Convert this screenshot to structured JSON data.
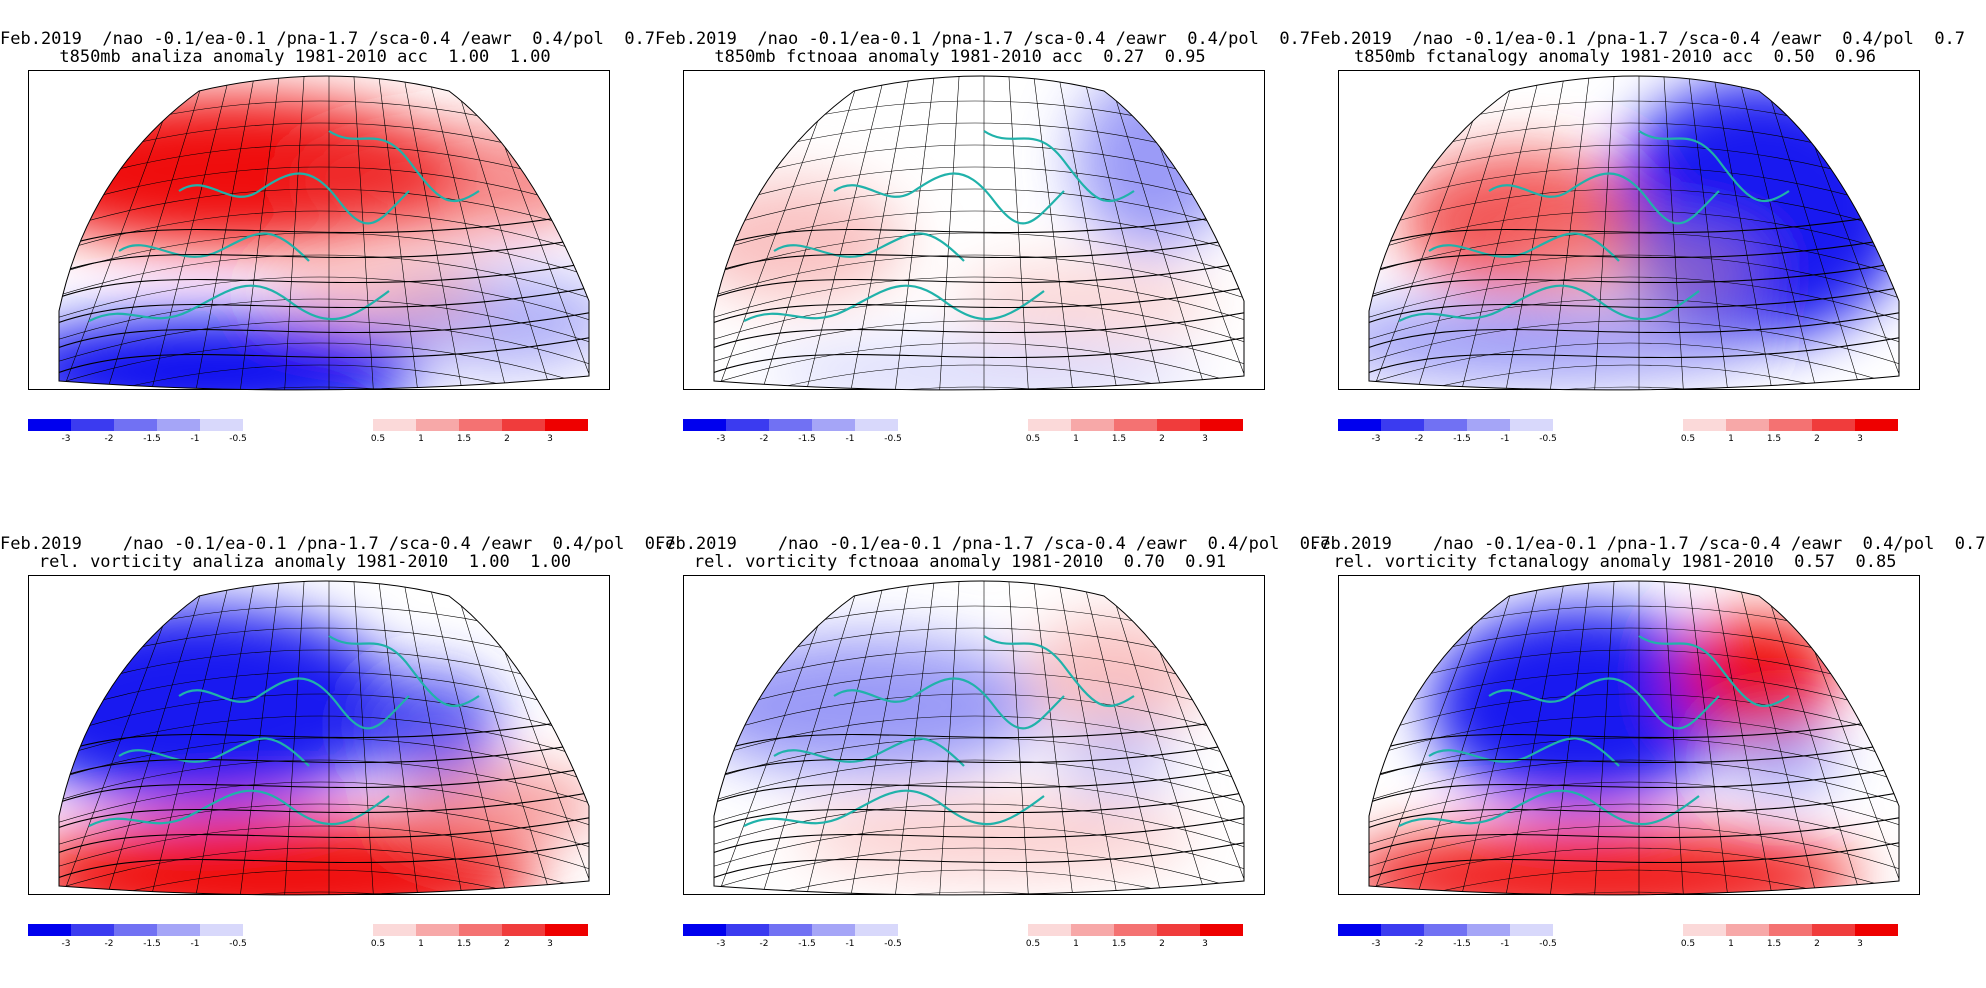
{
  "panels": [
    {
      "title1": "Feb.2019  /nao -0.1/ea-0.1 /pna-1.7 /sca-0.4 /eawr  0.4/pol  0.7",
      "title2": "t850mb analiza anomaly 1981-2010 acc  1.00  1.00",
      "field": "t850_analysis"
    },
    {
      "title1": "Feb.2019  /nao -0.1/ea-0.1 /pna-1.7 /sca-0.4 /eawr  0.4/pol  0.7",
      "title2": "t850mb fctnoaa anomaly 1981-2010 acc  0.27  0.95",
      "field": "t850_noaa"
    },
    {
      "title1": "Feb.2019  /nao -0.1/ea-0.1 /pna-1.7 /sca-0.4 /eawr  0.4/pol  0.7",
      "title2": "t850mb fctanalogy anomaly 1981-2010 acc  0.50  0.96",
      "field": "t850_analogy"
    },
    {
      "title1": "Feb.2019    /nao -0.1/ea-0.1 /pna-1.7 /sca-0.4 /eawr  0.4/pol  0.7",
      "title2": "rel. vorticity analiza anomaly 1981-2010  1.00  1.00",
      "field": "vort_analysis"
    },
    {
      "title1": "Feb.2019    /nao -0.1/ea-0.1 /pna-1.7 /sca-0.4 /eawr  0.4/pol  0.7",
      "title2": "rel. vorticity fctnoaa anomaly 1981-2010  0.70  0.91",
      "field": "vort_noaa"
    },
    {
      "title1": "Feb.2019    /nao -0.1/ea-0.1 /pna-1.7 /sca-0.4 /eawr  0.4/pol  0.7",
      "title2": "rel. vorticity fctanalogy anomaly 1981-2010  0.57  0.85",
      "field": "vort_analogy"
    }
  ],
  "colorbar": {
    "neg_labels": [
      "-3",
      "-2",
      "-1.5",
      "-1",
      "-0.5"
    ],
    "pos_labels": [
      "0.5",
      "1",
      "1.5",
      "2",
      "3"
    ],
    "neg_colors": [
      "#0000ee",
      "#3b3bf0",
      "#7171f3",
      "#a5a5f7",
      "#d8d8fb"
    ],
    "pos_colors": [
      "#fbd9d9",
      "#f7a8a8",
      "#f47272",
      "#f03c3c",
      "#ee0000"
    ]
  }
}
